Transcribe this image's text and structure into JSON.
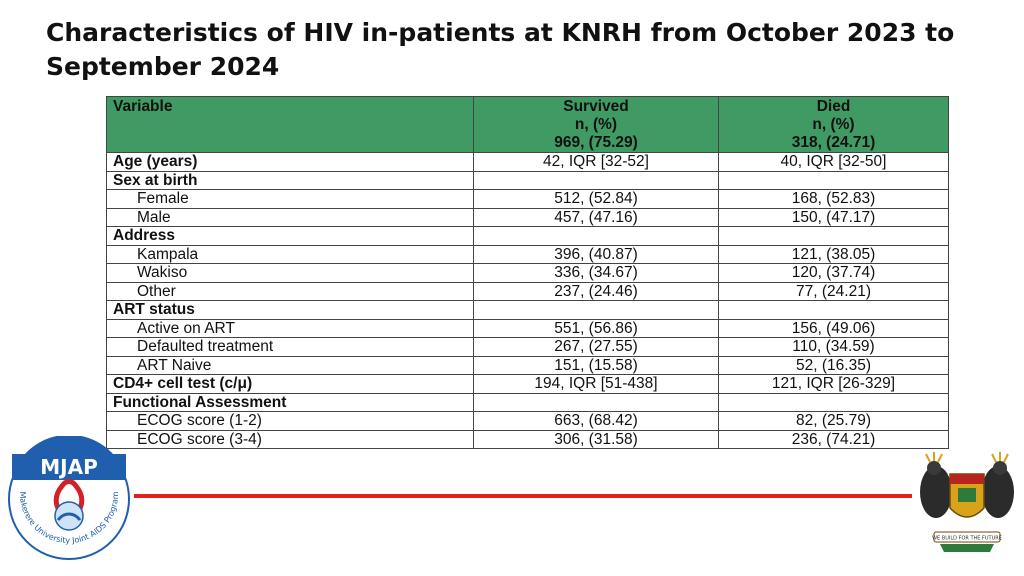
{
  "slide": {
    "title_line1": "Characteristics of HIV in-patients at KNRH from October 2023 to",
    "title_line2": "September 2024"
  },
  "table": {
    "header": {
      "variable": "Variable",
      "survived": [
        "Survived",
        "n, (%)",
        "969, (75.29)"
      ],
      "died": [
        "Died",
        "n, (%)",
        "318, (24.71)"
      ]
    },
    "rows": [
      {
        "label": "Age (years)",
        "type": "section",
        "survived": "42, IQR [32-52]",
        "died": "40, IQR [32-50]"
      },
      {
        "label": "Sex at birth",
        "type": "section",
        "survived": "",
        "died": ""
      },
      {
        "label": "Female",
        "type": "sub",
        "survived": "512, (52.84)",
        "died": "168, (52.83)"
      },
      {
        "label": "Male",
        "type": "sub",
        "survived": "457, (47.16)",
        "died": "150, (47.17)"
      },
      {
        "label": "Address",
        "type": "section",
        "survived": "",
        "died": ""
      },
      {
        "label": "Kampala",
        "type": "sub",
        "survived": "396, (40.87)",
        "died": "121, (38.05)"
      },
      {
        "label": "Wakiso",
        "type": "sub",
        "survived": "336, (34.67)",
        "died": "120, (37.74)"
      },
      {
        "label": "Other",
        "type": "sub",
        "survived": "237, (24.46)",
        "died": "77, (24.21)"
      },
      {
        "label": "ART status",
        "type": "section",
        "survived": "",
        "died": ""
      },
      {
        "label": "Active on ART",
        "type": "sub",
        "survived": "551, (56.86)",
        "died": "156, (49.06)"
      },
      {
        "label": "Defaulted treatment",
        "type": "sub",
        "survived": "267, (27.55)",
        "died": "110, (34.59)"
      },
      {
        "label": "ART Naive",
        "type": "sub",
        "survived": "151, (15.58)",
        "died": "52, (16.35)"
      },
      {
        "label": "CD4+ cell test (c/μ)",
        "type": "section",
        "survived": "194, IQR [51-438]",
        "died": "121, IQR [26-329]"
      },
      {
        "label": "Functional Assessment",
        "type": "section",
        "survived": "",
        "died": ""
      },
      {
        "label": "ECOG score (1-2)",
        "type": "sub",
        "survived": "663, (68.42)",
        "died": "82, (25.79)"
      },
      {
        "label": "ECOG score (3-4)",
        "type": "sub",
        "survived": "306, (31.58)",
        "died": "236, (74.21)"
      }
    ]
  },
  "logo_left": {
    "acronym": "MJAP",
    "ring_text": "Makerere University Joint AIDS Program",
    "colors": {
      "blue": "#1f5fae",
      "red": "#d42027"
    }
  },
  "logo_right": {
    "motto": "WE BUILD FOR THE FUTURE"
  },
  "colors": {
    "header_green": "#3f9a63",
    "rule_red": "#e0201c"
  }
}
